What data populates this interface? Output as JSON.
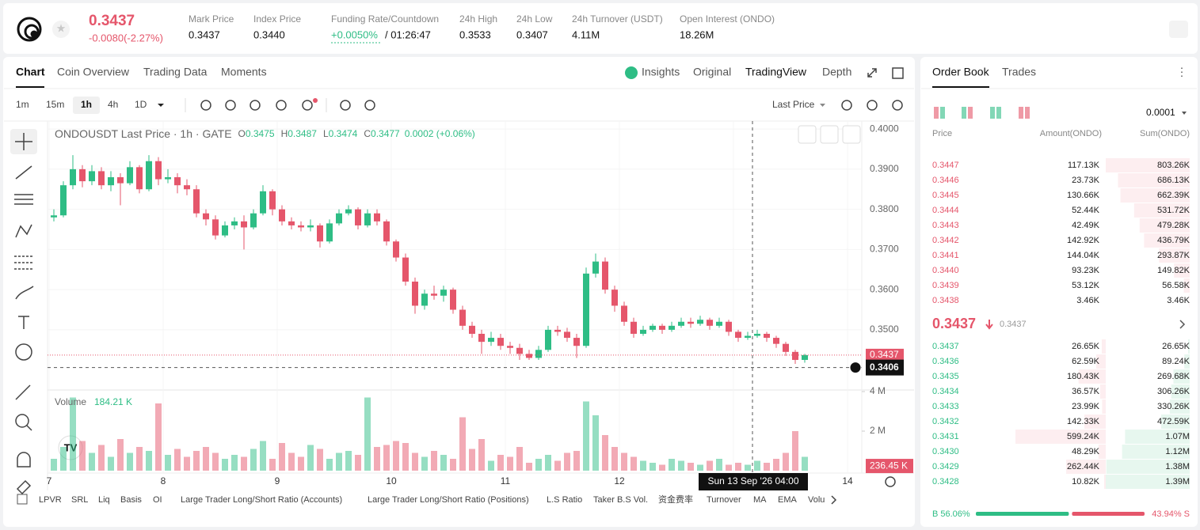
{
  "header": {
    "price": "0.3437",
    "change": "-0.0080(-2.27%)",
    "stats": [
      {
        "label": "Mark Price",
        "value": "0.3437"
      },
      {
        "label": "Index Price",
        "value": "0.3440"
      },
      {
        "label": "Funding Rate/Countdown",
        "value": "+0.0050%",
        "extra": "/ 01:26:47"
      },
      {
        "label": "24h High",
        "value": "0.3533"
      },
      {
        "label": "24h Low",
        "value": "0.3407"
      },
      {
        "label": "24h Turnover (USDT)",
        "value": "4.11M"
      },
      {
        "label": "Open Interest (ONDO)",
        "value": "18.26M"
      }
    ]
  },
  "tabs": [
    "Chart",
    "Coin Overview",
    "Trading Data",
    "Moments"
  ],
  "view_tabs": [
    "Insights",
    "Original",
    "TradingView",
    "Depth"
  ],
  "intervals": [
    "1m",
    "15m",
    "1h",
    "4h",
    "1D"
  ],
  "price_mode": "Last Price",
  "chart": {
    "type": "candlestick",
    "legend_title": "ONDOUSDT Last Price · 1h · GATE",
    "ohlc": [
      {
        "label": "O",
        "value": "0.3475"
      },
      {
        "label": "H",
        "value": "0.3487"
      },
      {
        "label": "L",
        "value": "0.3474"
      },
      {
        "label": "C",
        "value": "0.3477"
      }
    ],
    "legend_change": "0.0002 (+0.06%)",
    "ylim": [
      0.3356,
      0.4016
    ],
    "yticks": [
      {
        "value": 0.4,
        "label": "0.4000"
      },
      {
        "value": 0.39,
        "label": "0.3900"
      },
      {
        "value": 0.38,
        "label": "0.3800"
      },
      {
        "value": 0.37,
        "label": "0.3700"
      },
      {
        "value": 0.36,
        "label": "0.3600"
      },
      {
        "value": 0.35,
        "label": "0.3500"
      }
    ],
    "day_labels": [
      "7",
      "8",
      "9",
      "10",
      "11",
      "12",
      null,
      "14"
    ],
    "up_color": "#2ebd85",
    "down_color": "#e5566b",
    "candles": [
      [
        0.378,
        0.38,
        0.377,
        0.3785
      ],
      [
        0.3785,
        0.387,
        0.378,
        0.386
      ],
      [
        0.386,
        0.3935,
        0.385,
        0.39
      ],
      [
        0.39,
        0.391,
        0.3855,
        0.387
      ],
      [
        0.387,
        0.391,
        0.386,
        0.3895
      ],
      [
        0.3895,
        0.3905,
        0.385,
        0.386
      ],
      [
        0.386,
        0.3895,
        0.3845,
        0.388
      ],
      [
        0.388,
        0.389,
        0.381,
        0.3865
      ],
      [
        0.3865,
        0.392,
        0.386,
        0.3905
      ],
      [
        0.3905,
        0.391,
        0.384,
        0.385
      ],
      [
        0.385,
        0.3935,
        0.3845,
        0.392
      ],
      [
        0.392,
        0.393,
        0.386,
        0.3875
      ],
      [
        0.3875,
        0.39,
        0.3865,
        0.388
      ],
      [
        0.388,
        0.389,
        0.384,
        0.386
      ],
      [
        0.386,
        0.3875,
        0.3835,
        0.385
      ],
      [
        0.385,
        0.386,
        0.378,
        0.379
      ],
      [
        0.379,
        0.38,
        0.376,
        0.3775
      ],
      [
        0.3775,
        0.3785,
        0.3725,
        0.3735
      ],
      [
        0.3735,
        0.377,
        0.373,
        0.376
      ],
      [
        0.376,
        0.378,
        0.375,
        0.377
      ],
      [
        0.377,
        0.3785,
        0.37,
        0.3755
      ],
      [
        0.3755,
        0.38,
        0.375,
        0.379
      ],
      [
        0.379,
        0.386,
        0.3785,
        0.3845
      ],
      [
        0.3845,
        0.385,
        0.3785,
        0.38
      ],
      [
        0.38,
        0.381,
        0.376,
        0.377
      ],
      [
        0.377,
        0.378,
        0.375,
        0.376
      ],
      [
        0.376,
        0.377,
        0.3745,
        0.3755
      ],
      [
        0.3755,
        0.3775,
        0.3745,
        0.376
      ],
      [
        0.376,
        0.3765,
        0.3705,
        0.372
      ],
      [
        0.372,
        0.3775,
        0.3715,
        0.3765
      ],
      [
        0.3765,
        0.38,
        0.376,
        0.379
      ],
      [
        0.379,
        0.381,
        0.3785,
        0.38
      ],
      [
        0.38,
        0.3805,
        0.375,
        0.376
      ],
      [
        0.376,
        0.38,
        0.3755,
        0.379
      ],
      [
        0.379,
        0.38,
        0.376,
        0.377
      ],
      [
        0.377,
        0.3775,
        0.371,
        0.372
      ],
      [
        0.372,
        0.3725,
        0.367,
        0.368
      ],
      [
        0.368,
        0.369,
        0.361,
        0.362
      ],
      [
        0.362,
        0.363,
        0.354,
        0.356
      ],
      [
        0.356,
        0.36,
        0.355,
        0.359
      ],
      [
        0.359,
        0.361,
        0.3575,
        0.3585
      ],
      [
        0.3585,
        0.361,
        0.357,
        0.36
      ],
      [
        0.36,
        0.3605,
        0.354,
        0.355
      ],
      [
        0.355,
        0.356,
        0.35,
        0.351
      ],
      [
        0.351,
        0.352,
        0.348,
        0.349
      ],
      [
        0.349,
        0.35,
        0.344,
        0.347
      ],
      [
        0.347,
        0.3495,
        0.346,
        0.348
      ],
      [
        0.348,
        0.349,
        0.345,
        0.346
      ],
      [
        0.346,
        0.347,
        0.344,
        0.3455
      ],
      [
        0.3455,
        0.3465,
        0.3425,
        0.344
      ],
      [
        0.344,
        0.345,
        0.3425,
        0.343
      ],
      [
        0.343,
        0.346,
        0.3425,
        0.345
      ],
      [
        0.345,
        0.351,
        0.3445,
        0.35
      ],
      [
        0.35,
        0.351,
        0.3485,
        0.3495
      ],
      [
        0.3495,
        0.3505,
        0.347,
        0.348
      ],
      [
        0.348,
        0.349,
        0.343,
        0.346
      ],
      [
        0.346,
        0.3655,
        0.3455,
        0.364
      ],
      [
        0.364,
        0.369,
        0.363,
        0.367
      ],
      [
        0.367,
        0.368,
        0.359,
        0.36
      ],
      [
        0.36,
        0.361,
        0.3545,
        0.356
      ],
      [
        0.356,
        0.357,
        0.351,
        0.352
      ],
      [
        0.352,
        0.353,
        0.348,
        0.349
      ],
      [
        0.349,
        0.351,
        0.3485,
        0.35
      ],
      [
        0.35,
        0.3515,
        0.3495,
        0.351
      ],
      [
        0.351,
        0.3515,
        0.349,
        0.35
      ],
      [
        0.35,
        0.352,
        0.3495,
        0.351
      ],
      [
        0.351,
        0.353,
        0.3505,
        0.352
      ],
      [
        0.352,
        0.353,
        0.3505,
        0.3515
      ],
      [
        0.3515,
        0.3535,
        0.351,
        0.3525
      ],
      [
        0.3525,
        0.353,
        0.35,
        0.351
      ],
      [
        0.351,
        0.353,
        0.3505,
        0.352
      ],
      [
        0.352,
        0.3525,
        0.3485,
        0.3495
      ],
      [
        0.3495,
        0.35,
        0.347,
        0.348
      ],
      [
        0.348,
        0.3495,
        0.3475,
        0.3485
      ],
      [
        0.3485,
        0.35,
        0.348,
        0.349
      ],
      [
        0.349,
        0.3495,
        0.347,
        0.348
      ],
      [
        0.348,
        0.3485,
        0.3455,
        0.3465
      ],
      [
        0.3465,
        0.347,
        0.3435,
        0.3445
      ],
      [
        0.3445,
        0.345,
        0.3415,
        0.3425
      ],
      [
        0.3425,
        0.344,
        0.3418,
        0.3437
      ]
    ],
    "last_price": {
      "value": 0.3437,
      "label": "0.3437"
    },
    "crosshair_price": {
      "value": 0.3406,
      "label": "0.3406"
    },
    "crosshair_time": "Sun 13 Sep '26  04:00",
    "volume_title": "Volume",
    "volume_value": "184.21 K",
    "vol_ylim": [
      0,
      4000000
    ],
    "vol_ticks": [
      {
        "value": 4000000,
        "label": "4 M"
      },
      {
        "value": 2000000,
        "label": "2 M"
      }
    ],
    "vol_marker": {
      "value": 236450,
      "label": "236.45 K"
    },
    "volumes": [
      600000,
      1200000,
      3700000,
      1500000,
      900000,
      1300000,
      700000,
      1600000,
      900000,
      1200000,
      1000000,
      3400000,
      800000,
      1100000,
      700000,
      1000000,
      1200000,
      900000,
      600000,
      800000,
      700000,
      1100000,
      1500000,
      600000,
      1400000,
      900000,
      700000,
      1300000,
      1100000,
      600000,
      900000,
      1000000,
      800000,
      3700000,
      1200000,
      1300000,
      1500000,
      1400000,
      900000,
      700000,
      1000000,
      800000,
      600000,
      2700000,
      1100000,
      1600000,
      500000,
      800000,
      700000,
      1200000,
      400000,
      600000,
      800000,
      500000,
      900000,
      1000000,
      3500000,
      2800000,
      1800000,
      1200000,
      900000,
      700000,
      500000,
      400000,
      300000,
      600000,
      500000,
      400000,
      300000,
      500000,
      600000,
      300000,
      400000,
      300000,
      500000,
      400000,
      600000,
      900000,
      2000000,
      700000
    ]
  },
  "indicators": [
    "LPVR",
    "SRL",
    "Liq",
    "Basis",
    "OI",
    "Large Trader Long/Short Ratio (Accounts)",
    "Large Trader Long/Short Ratio (Positions)",
    "L.S Ratio",
    "Taker B.S Vol.",
    "资金费率",
    "Turnover",
    "MA",
    "EMA",
    "Volu"
  ],
  "order_book": {
    "tabs": [
      "Order Book",
      "Trades"
    ],
    "precision": "0.0001",
    "columns": [
      "Price",
      "Amount(ONDO)",
      "Sum(ONDO)"
    ],
    "asks": [
      {
        "price": "0.3447",
        "amount": {
          "value": 117130,
          "label": "117.13K"
        },
        "sum": {
          "value": 803260,
          "label": "803.26K"
        }
      },
      {
        "price": "0.3446",
        "amount": {
          "value": 23730,
          "label": "23.73K"
        },
        "sum": {
          "value": 686130,
          "label": "686.13K"
        }
      },
      {
        "price": "0.3445",
        "amount": {
          "value": 130660,
          "label": "130.66K"
        },
        "sum": {
          "value": 662390,
          "label": "662.39K"
        }
      },
      {
        "price": "0.3444",
        "amount": {
          "value": 52440,
          "label": "52.44K"
        },
        "sum": {
          "value": 531720,
          "label": "531.72K"
        }
      },
      {
        "price": "0.3443",
        "amount": {
          "value": 42490,
          "label": "42.49K"
        },
        "sum": {
          "value": 479280,
          "label": "479.28K"
        }
      },
      {
        "price": "0.3442",
        "amount": {
          "value": 142920,
          "label": "142.92K"
        },
        "sum": {
          "value": 436790,
          "label": "436.79K"
        }
      },
      {
        "price": "0.3441",
        "amount": {
          "value": 144040,
          "label": "144.04K"
        },
        "sum": {
          "value": 293870,
          "label": "293.87K"
        }
      },
      {
        "price": "0.3440",
        "amount": {
          "value": 93230,
          "label": "93.23K"
        },
        "sum": {
          "value": 149820,
          "label": "149.82K"
        }
      },
      {
        "price": "0.3439",
        "amount": {
          "value": 53120,
          "label": "53.12K"
        },
        "sum": {
          "value": 56580,
          "label": "56.58K"
        }
      },
      {
        "price": "0.3438",
        "amount": {
          "value": 3460,
          "label": "3.46K"
        },
        "sum": {
          "value": 3460,
          "label": "3.46K"
        }
      }
    ],
    "mid_price": "0.3437",
    "mark_price": "0.3437",
    "bids": [
      {
        "price": "0.3437",
        "amount": {
          "value": 26650,
          "label": "26.65K"
        },
        "sum": {
          "value": 26650,
          "label": "26.65K"
        }
      },
      {
        "price": "0.3436",
        "amount": {
          "value": 62590,
          "label": "62.59K"
        },
        "sum": {
          "value": 89240,
          "label": "89.24K"
        }
      },
      {
        "price": "0.3435",
        "amount": {
          "value": 180430,
          "label": "180.43K"
        },
        "sum": {
          "value": 269680,
          "label": "269.68K"
        }
      },
      {
        "price": "0.3434",
        "amount": {
          "value": 36570,
          "label": "36.57K"
        },
        "sum": {
          "value": 306260,
          "label": "306.26K"
        }
      },
      {
        "price": "0.3433",
        "amount": {
          "value": 23990,
          "label": "23.99K"
        },
        "sum": {
          "value": 330260,
          "label": "330.26K"
        }
      },
      {
        "price": "0.3432",
        "amount": {
          "value": 142330,
          "label": "142.33K"
        },
        "sum": {
          "value": 472590,
          "label": "472.59K"
        }
      },
      {
        "price": "0.3431",
        "amount": {
          "value": 599240,
          "label": "599.24K"
        },
        "sum": {
          "value": 1070000,
          "label": "1.07M"
        }
      },
      {
        "price": "0.3430",
        "amount": {
          "value": 48290,
          "label": "48.29K"
        },
        "sum": {
          "value": 1120000,
          "label": "1.12M"
        }
      },
      {
        "price": "0.3429",
        "amount": {
          "value": 262440,
          "label": "262.44K"
        },
        "sum": {
          "value": 1380000,
          "label": "1.38M"
        }
      },
      {
        "price": "0.3428",
        "amount": {
          "value": 10820,
          "label": "10.82K"
        },
        "sum": {
          "value": 1390000,
          "label": "1.39M"
        }
      }
    ],
    "buy": {
      "value": 56.06,
      "label": "B 56.06%"
    },
    "sell": {
      "value": 43.94,
      "label": "43.94% S"
    }
  }
}
